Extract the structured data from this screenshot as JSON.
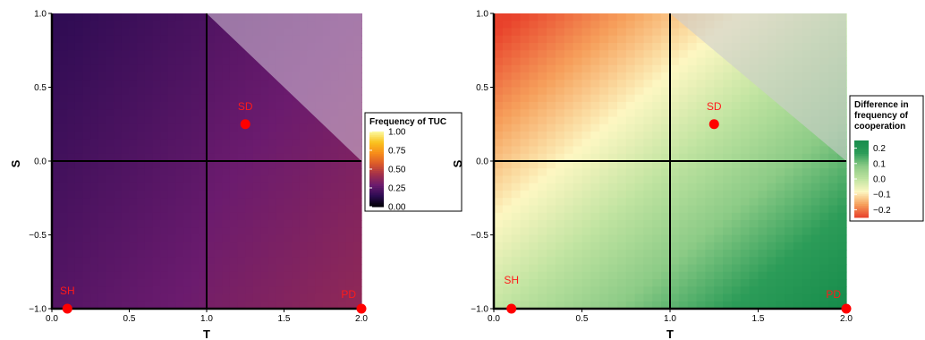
{
  "chart_data": [
    {
      "type": "heatmap",
      "xlabel": "T",
      "ylabel": "S",
      "xlim": [
        0,
        2
      ],
      "ylim": [
        -1,
        1
      ],
      "x_ticks": [
        "0.0",
        "0.5",
        "1.0",
        "1.5",
        "2.0"
      ],
      "x_tick_values": [
        0,
        0.5,
        1,
        1.5,
        2
      ],
      "y_ticks": [
        "−1.0",
        "−0.5",
        "0.0",
        "0.5",
        "1.0"
      ],
      "y_tick_values": [
        -1,
        -0.5,
        0,
        0.5,
        1
      ],
      "grid": false,
      "reference_lines": {
        "x": 1,
        "y": 0
      },
      "shaded_region": "S > T - 1",
      "fill_model": {
        "base": 0.19,
        "x_coef": 0.065,
        "y_coef": -0.045,
        "shift_right_of_T1": 0.015
      },
      "points": [
        {
          "label": "SD",
          "T": 1.25,
          "S": 0.25
        },
        {
          "label": "SH",
          "T": 0.1,
          "S": -1.0
        },
        {
          "label": "PD",
          "T": 2.0,
          "S": -1.0
        }
      ],
      "legend": {
        "title": "Frequency of TUC",
        "ticks": [
          "1.00",
          "0.75",
          "0.50",
          "0.25",
          "0.00"
        ],
        "tick_values": [
          1.0,
          0.75,
          0.5,
          0.25,
          0.0
        ],
        "range": [
          0,
          1
        ],
        "placement": "right"
      },
      "colors": {
        "palette": "inferno",
        "stops": [
          "#000004",
          "#2c0b52",
          "#6b1b6e",
          "#a3304a",
          "#dc5a2a",
          "#f78e1a",
          "#fac31f",
          "#fcfba2"
        ],
        "point": "#ff0000"
      }
    },
    {
      "type": "heatmap",
      "xlabel": "T",
      "ylabel": "S",
      "xlim": [
        0,
        2
      ],
      "ylim": [
        -1,
        1
      ],
      "x_ticks": [
        "0.0",
        "0.5",
        "1.0",
        "1.5",
        "2.0"
      ],
      "x_tick_values": [
        0,
        0.5,
        1,
        1.5,
        2
      ],
      "y_ticks": [
        "−1.0",
        "−0.5",
        "0.0",
        "0.5",
        "1.0"
      ],
      "y_tick_values": [
        -1,
        -0.5,
        0,
        0.5,
        1
      ],
      "grid": false,
      "reference_lines": {
        "x": 1,
        "y": 0
      },
      "shaded_region": "S > T - 1",
      "fill_model": {
        "difference_in_units_of_T_minus_S": 0.13,
        "offset": 1.05
      },
      "points": [
        {
          "label": "SD",
          "T": 1.25,
          "S": 0.25
        },
        {
          "label": "SH",
          "T": 0.1,
          "S": -1.0
        },
        {
          "label": "PD",
          "T": 2.0,
          "S": -1.0
        }
      ],
      "legend": {
        "title": [
          "Difference in",
          "frequency of",
          "cooperation"
        ],
        "ticks": [
          "0.2",
          "0.1",
          "0.0",
          "−0.1",
          "−0.2"
        ],
        "tick_values": [
          0.2,
          0.1,
          0.0,
          -0.1,
          -0.2
        ],
        "range": [
          -0.25,
          0.25
        ],
        "placement": "right"
      },
      "colors": {
        "palette": "diverging red-yellow-green",
        "stops": [
          "#e8412b",
          "#f6a05b",
          "#fdf7c2",
          "#bfe3a0",
          "#8ccb86",
          "#2c9c58",
          "#178c4c"
        ],
        "point": "#ff0000"
      }
    }
  ]
}
